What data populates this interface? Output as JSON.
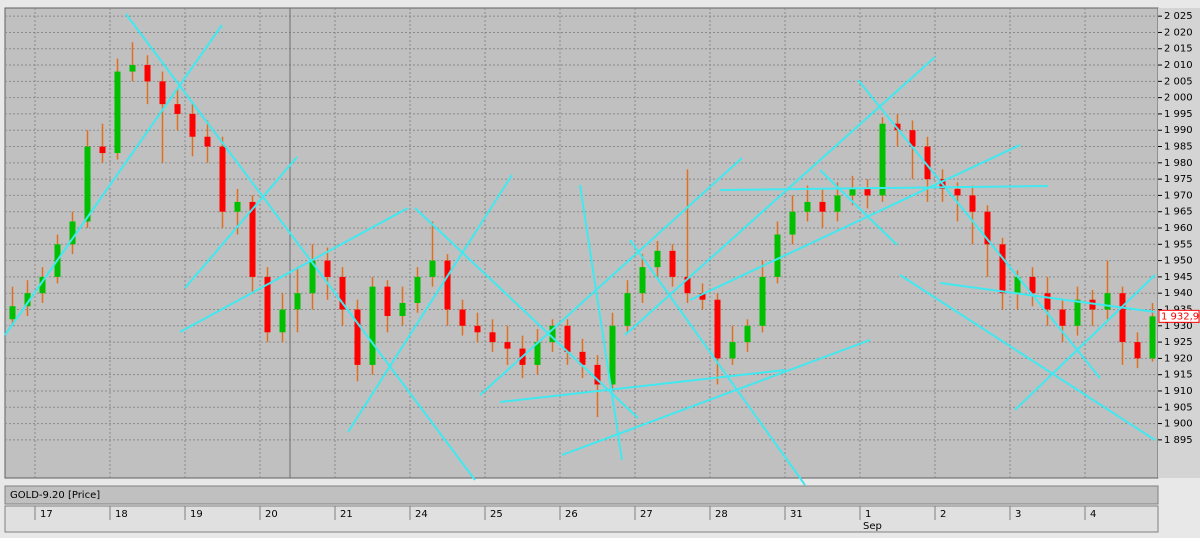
{
  "chart_data": {
    "type": "candlestick",
    "title": "GOLD-9.20 [Price]",
    "categories": [
      null,
      null,
      "17",
      null,
      null,
      null,
      null,
      "18",
      null,
      null,
      null,
      null,
      "19",
      null,
      null,
      null,
      null,
      "20",
      null,
      null,
      null,
      null,
      "21",
      null,
      null,
      null,
      null,
      "24",
      null,
      null,
      null,
      null,
      "25",
      null,
      null,
      null,
      null,
      "26",
      null,
      null,
      null,
      null,
      "27",
      null,
      null,
      null,
      null,
      "28",
      null,
      null,
      null,
      null,
      "31",
      null,
      null,
      null,
      null,
      "1",
      null,
      null,
      null,
      null,
      "2",
      null,
      null,
      null,
      null,
      "3",
      null,
      null,
      null,
      null,
      "4",
      null,
      null,
      null,
      null
    ],
    "categories2": [
      null,
      null,
      null,
      null,
      null,
      null,
      null,
      null,
      null,
      null,
      null,
      null,
      null,
      null,
      null,
      null,
      null,
      null,
      null,
      null,
      null,
      null,
      null,
      null,
      null,
      null,
      null,
      null,
      null,
      null,
      null,
      null,
      null,
      null,
      null,
      null,
      null,
      null,
      null,
      null,
      null,
      null,
      null,
      null,
      null,
      null,
      null,
      null,
      null,
      null,
      null,
      null,
      null,
      null,
      null,
      null,
      null,
      "Sep",
      null,
      null,
      null,
      null,
      null,
      null,
      null,
      null,
      null,
      null,
      null,
      null,
      null,
      null,
      null,
      null,
      null,
      null,
      null
    ],
    "open": [
      1932,
      1936,
      1940,
      1945,
      1955,
      1962,
      1985,
      1983,
      2008,
      2010,
      2005,
      1998,
      1995,
      1988,
      1985,
      1965,
      1968,
      1945,
      1928,
      1935,
      1940,
      1950,
      1945,
      1935,
      1918,
      1942,
      1933,
      1937,
      1945,
      1950,
      1935,
      1930,
      1928,
      1925,
      1923,
      1918,
      1925,
      1930,
      1922,
      1918,
      1912,
      1930,
      1940,
      1948,
      1953,
      1945,
      1940,
      1938,
      1920,
      1925,
      1930,
      1945,
      1958,
      1965,
      1968,
      1965,
      1970,
      1972,
      1970,
      1992,
      1990,
      1985,
      1975,
      1972,
      1970,
      1965,
      1955,
      1940,
      1945,
      1940,
      1935,
      1930,
      1938,
      1935,
      1940,
      1925,
      1920
    ],
    "high": [
      1942,
      1944,
      1948,
      1958,
      1965,
      1990,
      1992,
      2012,
      2017,
      2013,
      2008,
      2003,
      1998,
      1993,
      1988,
      1972,
      1970,
      1948,
      1940,
      1948,
      1955,
      1954,
      1948,
      1938,
      1945,
      1944,
      1942,
      1948,
      1962,
      1952,
      1938,
      1934,
      1932,
      1930,
      1927,
      1929,
      1932,
      1932,
      1926,
      1921,
      1934,
      1944,
      1952,
      1956,
      1955,
      1978,
      1943,
      1940,
      1930,
      1932,
      1950,
      1962,
      1970,
      1973,
      1972,
      1974,
      1976,
      1975,
      1994,
      1995,
      1993,
      1988,
      1978,
      1974,
      1973,
      1967,
      1957,
      1947,
      1948,
      1945,
      1938,
      1942,
      1941,
      1950,
      1942,
      1928,
      1937
    ],
    "low": [
      1930,
      1933,
      1937,
      1943,
      1952,
      1960,
      1980,
      1981,
      2005,
      1998,
      1980,
      1990,
      1982,
      1980,
      1960,
      1958,
      1940,
      1925,
      1925,
      1928,
      1935,
      1938,
      1930,
      1913,
      1915,
      1928,
      1930,
      1934,
      1942,
      1930,
      1927,
      1925,
      1922,
      1918,
      1914,
      1915,
      1922,
      1918,
      1914,
      1902,
      1910,
      1928,
      1937,
      1945,
      1942,
      1937,
      1935,
      1912,
      1918,
      1922,
      1928,
      1943,
      1955,
      1962,
      1960,
      1962,
      1967,
      1966,
      1968,
      1985,
      1975,
      1968,
      1968,
      1962,
      1955,
      1945,
      1935,
      1935,
      1936,
      1930,
      1925,
      1927,
      1930,
      1932,
      1918,
      1917,
      1919
    ],
    "close": [
      1936,
      1940,
      1945,
      1955,
      1962,
      1985,
      1983,
      2008,
      2010,
      2005,
      1998,
      1995,
      1988,
      1985,
      1965,
      1968,
      1945,
      1928,
      1935,
      1940,
      1950,
      1945,
      1935,
      1918,
      1942,
      1933,
      1937,
      1945,
      1950,
      1935,
      1930,
      1928,
      1925,
      1923,
      1918,
      1925,
      1930,
      1922,
      1918,
      1912,
      1930,
      1940,
      1948,
      1953,
      1945,
      1940,
      1938,
      1920,
      1925,
      1930,
      1945,
      1958,
      1965,
      1968,
      1965,
      1970,
      1972,
      1970,
      1992,
      1990,
      1985,
      1975,
      1972,
      1970,
      1965,
      1955,
      1940,
      1945,
      1940,
      1935,
      1930,
      1938,
      1935,
      1940,
      1925,
      1920,
      1932.9
    ],
    "up_color": "#00c000",
    "down_color": "#ff0000",
    "wick_color": "#e07020",
    "last_price": {
      "value": 1932.9,
      "label": "1 932,9"
    },
    "ylim": [
      1883.3,
      2027.5
    ],
    "yticks": [
      {
        "value": 2025,
        "label": "2 025"
      },
      {
        "value": 2020,
        "label": "2 020"
      },
      {
        "value": 2015,
        "label": "2 015"
      },
      {
        "value": 2010,
        "label": "2 010"
      },
      {
        "value": 2005,
        "label": "2 005"
      },
      {
        "value": 2000,
        "label": "2 000"
      },
      {
        "value": 1995,
        "label": "1 995"
      },
      {
        "value": 1990,
        "label": "1 990"
      },
      {
        "value": 1985,
        "label": "1 985"
      },
      {
        "value": 1980,
        "label": "1 980"
      },
      {
        "value": 1975,
        "label": "1 975"
      },
      {
        "value": 1970,
        "label": "1 970"
      },
      {
        "value": 1965,
        "label": "1 965"
      },
      {
        "value": 1960,
        "label": "1 960"
      },
      {
        "value": 1955,
        "label": "1 955"
      },
      {
        "value": 1950,
        "label": "1 950"
      },
      {
        "value": 1945,
        "label": "1 945"
      },
      {
        "value": 1940,
        "label": "1 940"
      },
      {
        "value": 1935,
        "label": "1 935"
      },
      {
        "value": 1930,
        "label": "1 930"
      },
      {
        "value": 1925,
        "label": "1 925"
      },
      {
        "value": 1920,
        "label": "1 920"
      },
      {
        "value": 1915,
        "label": "1 915"
      },
      {
        "value": 1910,
        "label": "1 910"
      },
      {
        "value": 1905,
        "label": "1 905"
      },
      {
        "value": 1900,
        "label": "1 900"
      },
      {
        "value": 1895,
        "label": "1 895"
      }
    ],
    "grid": true
  }
}
